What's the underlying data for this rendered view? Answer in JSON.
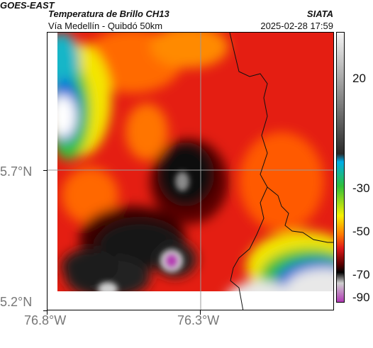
{
  "header": {
    "agency": "GOES-EAST",
    "product": "Temperatura de Brillo CH13",
    "location": "Vía Medellín - Quibdó 50km",
    "org": "SIATA",
    "datetime": "2025-02-28 17:59"
  },
  "map": {
    "lat_ticks": [
      "5.7°N",
      "5.2°N"
    ],
    "lon_ticks": [
      "76.8°W",
      "76.3°W"
    ]
  },
  "colorbar": {
    "ticks": [
      "20",
      "-30",
      "-50",
      "-70",
      "-90"
    ],
    "colors": [
      "#f5f5f5",
      "#2a2a2a",
      "#00aee8",
      "#2fbf3a",
      "#f7f000",
      "#ff7a00",
      "#e01a1a",
      "#5a0000",
      "#000000",
      "#cfcfcf",
      "#b13ab5"
    ]
  },
  "icons": [
    "lat-lon-grid",
    "border-line"
  ]
}
